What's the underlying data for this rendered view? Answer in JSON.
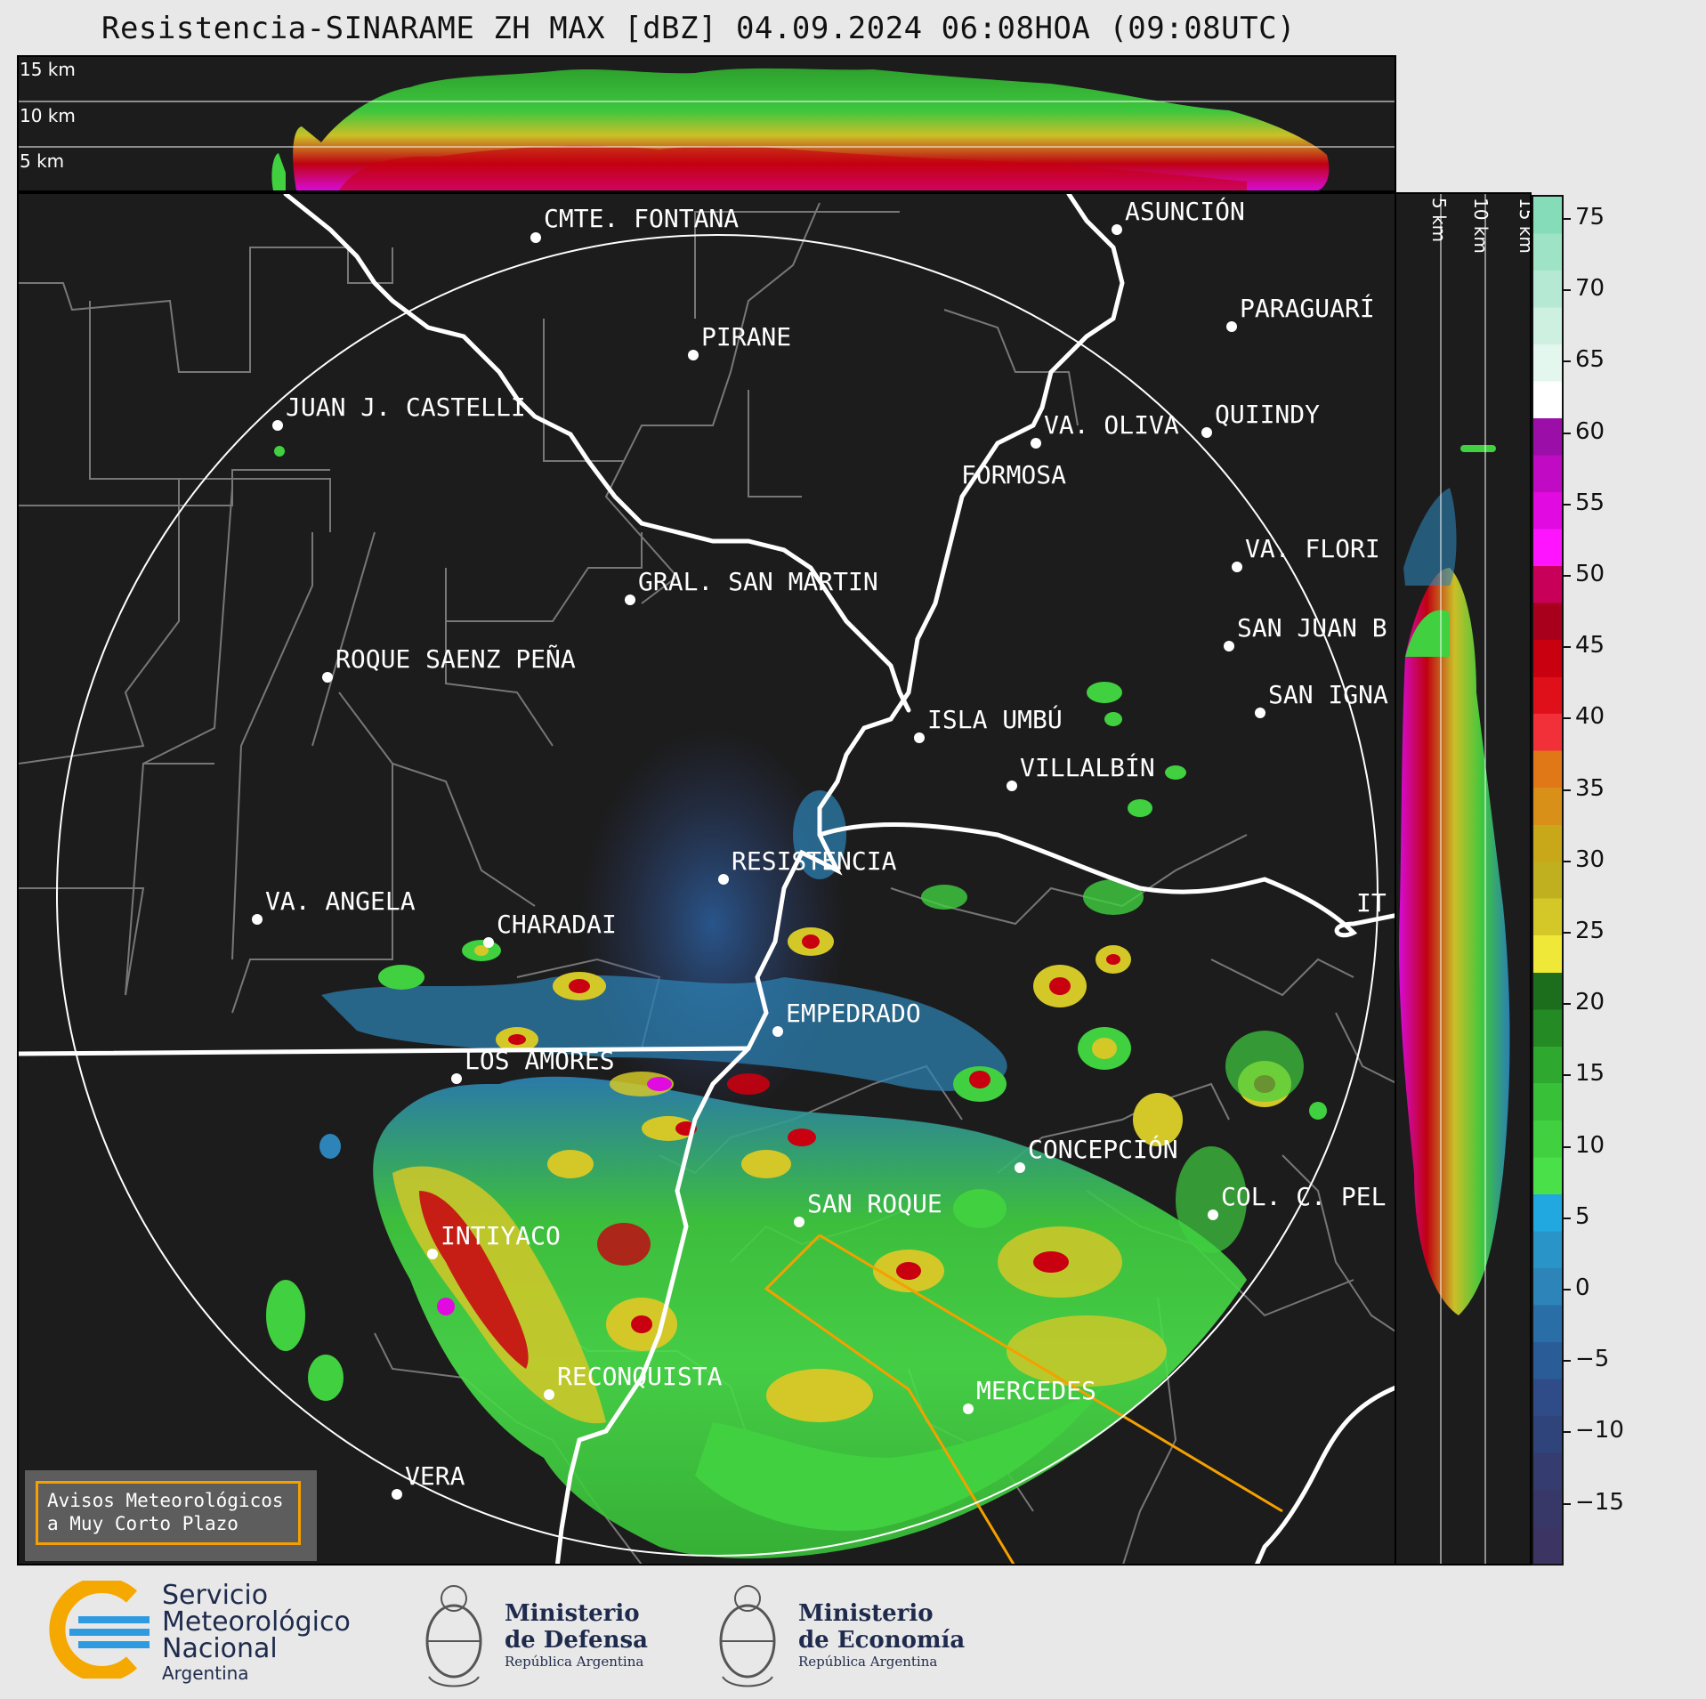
{
  "title": "Resistencia-SINARAME ZH MAX [dBZ] 04.09.2024 06:08HOA (09:08UTC)",
  "top_strip": {
    "labels": [
      "15 km",
      "10 km",
      "5 km"
    ]
  },
  "side_strip": {
    "labels": [
      "5 km",
      "10 km",
      "15 km"
    ]
  },
  "colorbar": {
    "ticks": [
      "75",
      "70",
      "65",
      "60",
      "55",
      "50",
      "45",
      "40",
      "35",
      "30",
      "25",
      "20",
      "15",
      "10",
      "5",
      "0",
      "−5",
      "−10",
      "−15"
    ],
    "colors": [
      "#84dcb8",
      "#9fe3c6",
      "#b6e9d3",
      "#cdf0e1",
      "#e3f7ee",
      "#ffffff",
      "#9b0ea8",
      "#c10ac4",
      "#e10ae0",
      "#ff14ff",
      "#c8005a",
      "#a8001c",
      "#c80010",
      "#e0101a",
      "#f2303a",
      "#e07818",
      "#d89018",
      "#c8a818",
      "#c0b020",
      "#d4c828",
      "#f0e838",
      "#1c6e1c",
      "#248a24",
      "#2ea82e",
      "#38c038",
      "#40d040",
      "#4ae04a",
      "#22a8e0",
      "#2894c8",
      "#2c84b8",
      "#2a6ea8",
      "#2a5c98",
      "#304c88",
      "#30447c",
      "#343c70",
      "#383868",
      "#3c3462"
    ],
    "colorbar_scale": "dBZ"
  },
  "cities": [
    {
      "name": "CMTE. FONTANA"
    },
    {
      "name": "ASUNCIÓN"
    },
    {
      "name": "PIRANE"
    },
    {
      "name": "PARAGUARÍ"
    },
    {
      "name": "JUAN J. CASTELLI"
    },
    {
      "name": "VA. OLIVA"
    },
    {
      "name": "QUIINDY"
    },
    {
      "name": "FORMOSA"
    },
    {
      "name": "VA. FLORI"
    },
    {
      "name": "GRAL. SAN MARTIN"
    },
    {
      "name": "SAN JUAN B"
    },
    {
      "name": "ROQUE SAENZ PEÑA"
    },
    {
      "name": "SAN IGNA"
    },
    {
      "name": "ISLA UMBÚ"
    },
    {
      "name": "VILLALBÍN"
    },
    {
      "name": "RESISTENCIA"
    },
    {
      "name": "VA. ANGELA"
    },
    {
      "name": "CHARADAI"
    },
    {
      "name": "IT"
    },
    {
      "name": "EMPEDRADO"
    },
    {
      "name": "LOS AMORES"
    },
    {
      "name": "CONCEPCIÓN"
    },
    {
      "name": "SAN ROQUE"
    },
    {
      "name": "COL. C. PEL"
    },
    {
      "name": "INTIYACO"
    },
    {
      "name": "RECONQUISTA"
    },
    {
      "name": "MERCEDES"
    },
    {
      "name": "VERA"
    }
  ],
  "avisos": {
    "line1": "Avisos Meteorológicos",
    "line2": "a Muy Corto Plazo"
  },
  "footer": {
    "smn": {
      "line1": "Servicio",
      "line2": "Meteorológico",
      "line3": "Nacional",
      "line4": "Argentina"
    },
    "defensa": {
      "line1": "Ministerio",
      "line2": "de Defensa",
      "line3": "República Argentina"
    },
    "economia": {
      "line1": "Ministerio",
      "line2": "de Economía",
      "line3": "República Argentina"
    }
  }
}
